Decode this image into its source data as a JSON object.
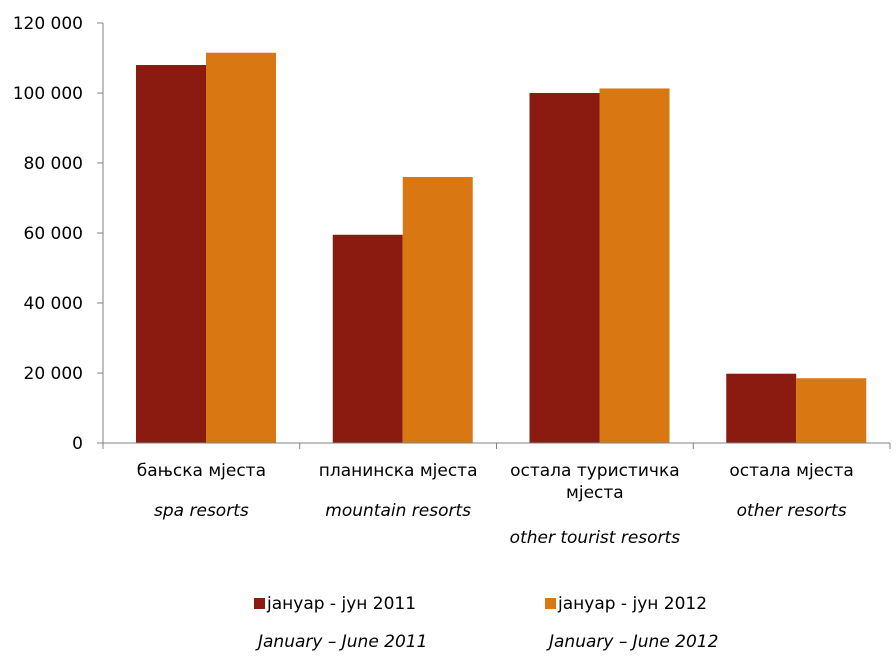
{
  "chart_data": {
    "type": "bar",
    "categories": [
      {
        "label": "бањска мјеста",
        "label_en": "spa resorts"
      },
      {
        "label": "планинска мјеста",
        "label_en": "mountain resorts"
      },
      {
        "label": "остала туристичка мјеста",
        "label_en": "other tourist resorts"
      },
      {
        "label": "остала мјеста",
        "label_en": "other resorts"
      }
    ],
    "series": [
      {
        "name": "јануар - јун 2011",
        "name_en": "January – June 2011",
        "color": "#8B1A11",
        "values": [
          108000,
          59500,
          100000,
          19800
        ]
      },
      {
        "name": "јануар - јун 2012",
        "name_en": "January – June 2012",
        "color": "#D97713",
        "values": [
          111500,
          76000,
          101300,
          18500
        ]
      }
    ],
    "ylim": [
      0,
      120000
    ],
    "yticks": [
      {
        "value": 0,
        "label": "0"
      },
      {
        "value": 20000,
        "label": "20 000"
      },
      {
        "value": 40000,
        "label": "40 000"
      },
      {
        "value": 60000,
        "label": "60 000"
      },
      {
        "value": 80000,
        "label": "80 000"
      },
      {
        "value": 100000,
        "label": "100 000"
      },
      {
        "value": 120000,
        "label": "120 000"
      }
    ],
    "grid": false,
    "legend_position": "bottom",
    "title": "",
    "xlabel": "",
    "ylabel": ""
  },
  "colors": {
    "axis": "#808080"
  }
}
